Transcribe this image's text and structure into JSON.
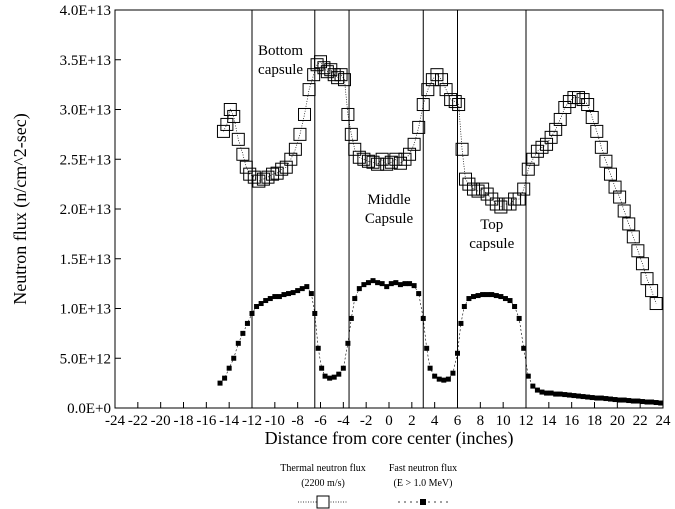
{
  "chart_data": {
    "type": "scatter",
    "xlabel": "Distance from core center (inches)",
    "ylabel": "Neutron flux (n/cm^2-sec)",
    "xlim": [
      -24,
      24
    ],
    "ylim": [
      0,
      40000000000000.0
    ],
    "x_ticks": [
      -24,
      -22,
      -20,
      -18,
      -16,
      -14,
      -12,
      -10,
      -8,
      -6,
      -4,
      -2,
      0,
      2,
      4,
      6,
      8,
      10,
      12,
      14,
      16,
      18,
      20,
      22,
      24
    ],
    "y_ticks": [
      {
        "value": 0,
        "label": "0.0E+0"
      },
      {
        "value": 5000000000000.0,
        "label": "5.0E+12"
      },
      {
        "value": 10000000000000.0,
        "label": "1.0E+13"
      },
      {
        "value": 15000000000000.0,
        "label": "1.5E+13"
      },
      {
        "value": 20000000000000.0,
        "label": "2.0E+13"
      },
      {
        "value": 25000000000000.0,
        "label": "2.5E+13"
      },
      {
        "value": 30000000000000.0,
        "label": "3.0E+13"
      },
      {
        "value": 35000000000000.0,
        "label": "3.5E+13"
      },
      {
        "value": 40000000000000.0,
        "label": "4.0E+13"
      }
    ],
    "grid": false,
    "vertical_lines": [
      -12,
      -6.5,
      -3.5,
      3,
      6,
      12
    ],
    "annotations": [
      {
        "lines": [
          "Bottom",
          "capsule"
        ],
        "x": -9.5,
        "y": 35500000000000.0
      },
      {
        "lines": [
          "Middle",
          "Capsule"
        ],
        "x": 0,
        "y": 20500000000000.0
      },
      {
        "lines": [
          "Top",
          "capsule"
        ],
        "x": 9,
        "y": 18000000000000.0
      }
    ],
    "legend": {
      "position": "bottom",
      "entries": [
        {
          "label_lines": [
            "Thermal neutron flux",
            "(2200 m/s)"
          ],
          "marker": "open-square",
          "line": "dotted"
        },
        {
          "label_lines": [
            "Fast neutron flux",
            "(E > 1.0 MeV)"
          ],
          "marker": "filled-square",
          "line": "dashed"
        }
      ]
    },
    "series": [
      {
        "name": "Thermal neutron flux",
        "marker": "open-square",
        "points": [
          [
            -14.5,
            27800000000000.0
          ],
          [
            -14.2,
            28500000000000.0
          ],
          [
            -13.9,
            30000000000000.0
          ],
          [
            -13.6,
            29300000000000.0
          ],
          [
            -13.2,
            27000000000000.0
          ],
          [
            -12.8,
            25500000000000.0
          ],
          [
            -12.5,
            24200000000000.0
          ],
          [
            -12.2,
            23500000000000.0
          ],
          [
            -11.8,
            23200000000000.0
          ],
          [
            -11.4,
            22800000000000.0
          ],
          [
            -11.0,
            23000000000000.0
          ],
          [
            -10.6,
            23200000000000.0
          ],
          [
            -10.2,
            23500000000000.0
          ],
          [
            -9.8,
            23600000000000.0
          ],
          [
            -9.4,
            24000000000000.0
          ],
          [
            -9.0,
            24200000000000.0
          ],
          [
            -8.6,
            25000000000000.0
          ],
          [
            -8.2,
            26000000000000.0
          ],
          [
            -7.8,
            27500000000000.0
          ],
          [
            -7.4,
            29500000000000.0
          ],
          [
            -7.0,
            32000000000000.0
          ],
          [
            -6.6,
            33500000000000.0
          ],
          [
            -6.3,
            34500000000000.0
          ],
          [
            -6.0,
            34800000000000.0
          ],
          [
            -5.7,
            34200000000000.0
          ],
          [
            -5.4,
            33800000000000.0
          ],
          [
            -5.1,
            34000000000000.0
          ],
          [
            -4.8,
            33500000000000.0
          ],
          [
            -4.5,
            33200000000000.0
          ],
          [
            -4.2,
            33500000000000.0
          ],
          [
            -3.9,
            33000000000000.0
          ],
          [
            -3.6,
            29500000000000.0
          ],
          [
            -3.3,
            27500000000000.0
          ],
          [
            -3.0,
            26000000000000.0
          ],
          [
            -2.6,
            25200000000000.0
          ],
          [
            -2.2,
            25000000000000.0
          ],
          [
            -1.8,
            24800000000000.0
          ],
          [
            -1.4,
            24700000000000.0
          ],
          [
            -1.0,
            24500000000000.0
          ],
          [
            -0.6,
            25000000000000.0
          ],
          [
            -0.2,
            24500000000000.0
          ],
          [
            0.2,
            24700000000000.0
          ],
          [
            0.6,
            25000000000000.0
          ],
          [
            1.0,
            24600000000000.0
          ],
          [
            1.4,
            25000000000000.0
          ],
          [
            1.8,
            25500000000000.0
          ],
          [
            2.2,
            26500000000000.0
          ],
          [
            2.6,
            28200000000000.0
          ],
          [
            3.0,
            30500000000000.0
          ],
          [
            3.4,
            32000000000000.0
          ],
          [
            3.8,
            33000000000000.0
          ],
          [
            4.2,
            33500000000000.0
          ],
          [
            4.6,
            33000000000000.0
          ],
          [
            5.0,
            32000000000000.0
          ],
          [
            5.4,
            31000000000000.0
          ],
          [
            5.8,
            30800000000000.0
          ],
          [
            6.1,
            30500000000000.0
          ],
          [
            6.4,
            26000000000000.0
          ],
          [
            6.7,
            23000000000000.0
          ],
          [
            7.0,
            22500000000000.0
          ],
          [
            7.4,
            22000000000000.0
          ],
          [
            7.8,
            21800000000000.0
          ],
          [
            8.2,
            22000000000000.0
          ],
          [
            8.6,
            21500000000000.0
          ],
          [
            9.0,
            21000000000000.0
          ],
          [
            9.4,
            20500000000000.0
          ],
          [
            9.8,
            20200000000000.0
          ],
          [
            10.2,
            20500000000000.0
          ],
          [
            10.6,
            20500000000000.0
          ],
          [
            11.0,
            21000000000000.0
          ],
          [
            11.4,
            21000000000000.0
          ],
          [
            11.8,
            22000000000000.0
          ],
          [
            12.2,
            24000000000000.0
          ],
          [
            12.6,
            25000000000000.0
          ],
          [
            13.0,
            25800000000000.0
          ],
          [
            13.4,
            26200000000000.0
          ],
          [
            13.8,
            26500000000000.0
          ],
          [
            14.2,
            27200000000000.0
          ],
          [
            14.6,
            28000000000000.0
          ],
          [
            15.0,
            29000000000000.0
          ],
          [
            15.4,
            30200000000000.0
          ],
          [
            15.8,
            30800000000000.0
          ],
          [
            16.2,
            31200000000000.0
          ],
          [
            16.6,
            31200000000000.0
          ],
          [
            17.0,
            31000000000000.0
          ],
          [
            17.4,
            30500000000000.0
          ],
          [
            17.8,
            29200000000000.0
          ],
          [
            18.2,
            27800000000000.0
          ],
          [
            18.6,
            26200000000000.0
          ],
          [
            19.0,
            24800000000000.0
          ],
          [
            19.4,
            23500000000000.0
          ],
          [
            19.8,
            22200000000000.0
          ],
          [
            20.2,
            21200000000000.0
          ],
          [
            20.6,
            19800000000000.0
          ],
          [
            21.0,
            18500000000000.0
          ],
          [
            21.4,
            17200000000000.0
          ],
          [
            21.8,
            15800000000000.0
          ],
          [
            22.2,
            14500000000000.0
          ],
          [
            22.6,
            13000000000000.0
          ],
          [
            23.0,
            11800000000000.0
          ],
          [
            23.4,
            10500000000000.0
          ]
        ]
      },
      {
        "name": "Fast neutron flux",
        "marker": "filled-square",
        "points": [
          [
            -14.8,
            2500000000000.0
          ],
          [
            -14.4,
            3000000000000.0
          ],
          [
            -14.0,
            4000000000000.0
          ],
          [
            -13.6,
            5000000000000.0
          ],
          [
            -13.2,
            6500000000000.0
          ],
          [
            -12.8,
            7500000000000.0
          ],
          [
            -12.4,
            8500000000000.0
          ],
          [
            -12.0,
            9500000000000.0
          ],
          [
            -11.6,
            10200000000000.0
          ],
          [
            -11.2,
            10500000000000.0
          ],
          [
            -10.8,
            10800000000000.0
          ],
          [
            -10.4,
            11000000000000.0
          ],
          [
            -10.0,
            11200000000000.0
          ],
          [
            -9.6,
            11200000000000.0
          ],
          [
            -9.2,
            11400000000000.0
          ],
          [
            -8.8,
            11500000000000.0
          ],
          [
            -8.4,
            11600000000000.0
          ],
          [
            -8.0,
            11800000000000.0
          ],
          [
            -7.6,
            12000000000000.0
          ],
          [
            -7.2,
            12200000000000.0
          ],
          [
            -6.8,
            11500000000000.0
          ],
          [
            -6.5,
            9500000000000.0
          ],
          [
            -6.2,
            6000000000000.0
          ],
          [
            -5.9,
            4000000000000.0
          ],
          [
            -5.6,
            3200000000000.0
          ],
          [
            -5.2,
            3000000000000.0
          ],
          [
            -4.8,
            3100000000000.0
          ],
          [
            -4.4,
            3400000000000.0
          ],
          [
            -4.0,
            4000000000000.0
          ],
          [
            -3.6,
            6500000000000.0
          ],
          [
            -3.3,
            9000000000000.0
          ],
          [
            -3.0,
            11000000000000.0
          ],
          [
            -2.6,
            12000000000000.0
          ],
          [
            -2.2,
            12400000000000.0
          ],
          [
            -1.8,
            12600000000000.0
          ],
          [
            -1.4,
            12800000000000.0
          ],
          [
            -1.0,
            12600000000000.0
          ],
          [
            -0.6,
            12500000000000.0
          ],
          [
            -0.2,
            12200000000000.0
          ],
          [
            0.2,
            12500000000000.0
          ],
          [
            0.6,
            12600000000000.0
          ],
          [
            1.0,
            12400000000000.0
          ],
          [
            1.4,
            12500000000000.0
          ],
          [
            1.8,
            12500000000000.0
          ],
          [
            2.2,
            12300000000000.0
          ],
          [
            2.6,
            11500000000000.0
          ],
          [
            3.0,
            9000000000000.0
          ],
          [
            3.3,
            6000000000000.0
          ],
          [
            3.6,
            4000000000000.0
          ],
          [
            4.0,
            3200000000000.0
          ],
          [
            4.4,
            2900000000000.0
          ],
          [
            4.8,
            2800000000000.0
          ],
          [
            5.2,
            2900000000000.0
          ],
          [
            5.6,
            3500000000000.0
          ],
          [
            6.0,
            5500000000000.0
          ],
          [
            6.3,
            8500000000000.0
          ],
          [
            6.6,
            10200000000000.0
          ],
          [
            7.0,
            11000000000000.0
          ],
          [
            7.4,
            11200000000000.0
          ],
          [
            7.8,
            11300000000000.0
          ],
          [
            8.2,
            11400000000000.0
          ],
          [
            8.6,
            11400000000000.0
          ],
          [
            9.0,
            11400000000000.0
          ],
          [
            9.4,
            11300000000000.0
          ],
          [
            9.8,
            11200000000000.0
          ],
          [
            10.2,
            11000000000000.0
          ],
          [
            10.6,
            10800000000000.0
          ],
          [
            11.0,
            10200000000000.0
          ],
          [
            11.4,
            9000000000000.0
          ],
          [
            11.8,
            6000000000000.0
          ],
          [
            12.2,
            3200000000000.0
          ],
          [
            12.6,
            2200000000000.0
          ],
          [
            13.0,
            1800000000000.0
          ],
          [
            13.4,
            1600000000000.0
          ],
          [
            13.8,
            1500000000000.0
          ],
          [
            14.2,
            1500000000000.0
          ],
          [
            14.6,
            1400000000000.0
          ],
          [
            15.0,
            1400000000000.0
          ],
          [
            15.4,
            1350000000000.0
          ],
          [
            15.8,
            1300000000000.0
          ],
          [
            16.2,
            1250000000000.0
          ],
          [
            16.6,
            1200000000000.0
          ],
          [
            17.0,
            1150000000000.0
          ],
          [
            17.4,
            1100000000000.0
          ],
          [
            17.8,
            1050000000000.0
          ],
          [
            18.2,
            1000000000000.0
          ],
          [
            18.6,
            1000000000000.0
          ],
          [
            19.0,
            950000000000.0
          ],
          [
            19.4,
            900000000000.0
          ],
          [
            19.8,
            850000000000.0
          ],
          [
            20.2,
            800000000000.0
          ],
          [
            20.6,
            800000000000.0
          ],
          [
            21.0,
            750000000000.0
          ],
          [
            21.4,
            700000000000.0
          ],
          [
            21.8,
            700000000000.0
          ],
          [
            22.2,
            650000000000.0
          ],
          [
            22.6,
            600000000000.0
          ],
          [
            23.0,
            600000000000.0
          ],
          [
            23.4,
            550000000000.0
          ],
          [
            23.8,
            500000000000.0
          ]
        ]
      }
    ]
  }
}
